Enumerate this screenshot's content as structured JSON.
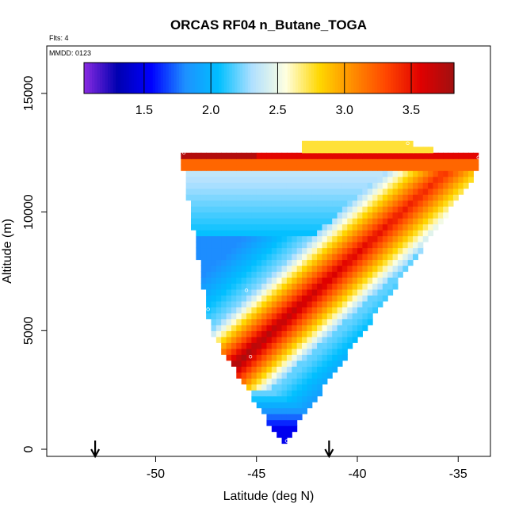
{
  "chart_data": {
    "type": "heatmap",
    "title": "ORCAS RF04 n_Butane_TOGA",
    "subtitle_flights": "Flts: 4",
    "subtitle_date": "MMDD: 0123",
    "xlabel": "Latitude (deg N)",
    "ylabel": "Altitude (m)",
    "xlim": [
      -55.4,
      -33.4
    ],
    "ylim": [
      -300,
      17000
    ],
    "x_ticks": [
      -50,
      -45,
      -40,
      -35
    ],
    "x_tick_labels": [
      "-50",
      "-45",
      "-40",
      "-35"
    ],
    "y_ticks": [
      0,
      5000,
      10000,
      15000
    ],
    "y_tick_labels": [
      "0",
      "5000",
      "10000",
      "15000"
    ],
    "colorbar": {
      "range": [
        1.05,
        3.82
      ],
      "ticks": [
        1.5,
        2.0,
        2.5,
        3.0,
        3.5
      ],
      "tick_labels": [
        "1.5",
        "2.0",
        "2.5",
        "3.0",
        "3.5"
      ],
      "colors": [
        "#8a2be2",
        "#0000b0",
        "#0000ff",
        "#1e90ff",
        "#00bfff",
        "#b0e0ff",
        "#ffffe0",
        "#ffd700",
        "#ff8c00",
        "#ff4500",
        "#e00000",
        "#a01010"
      ]
    },
    "field_region": {
      "description_points": [
        {
          "lat": -48.6,
          "alt": 12600
        },
        {
          "lat": -37.5,
          "alt": 12900
        },
        {
          "lat": -34.0,
          "alt": 12300
        },
        {
          "lat": -43.7,
          "alt": 300
        },
        {
          "lat": -46.3,
          "alt": 1800
        },
        {
          "lat": -47.4,
          "alt": 5000
        }
      ],
      "outflow_layer_alt": 12200,
      "plume_axis": [
        {
          "lat": -45.5,
          "alt": 4000,
          "value": 3.75
        },
        {
          "lat": -43.0,
          "alt": 6200,
          "value": 3.6
        },
        {
          "lat": -40.0,
          "alt": 8600,
          "value": 3.45
        },
        {
          "lat": -36.5,
          "alt": 11200,
          "value": 3.35
        }
      ],
      "min_value_near": {
        "lat": -43.7,
        "alt": 300,
        "value": 1.1
      },
      "max_value_near": {
        "lat": -48.5,
        "alt": 12400,
        "value": 3.8
      }
    },
    "flight_markers": [
      {
        "lat": -48.6,
        "alt": 12500
      },
      {
        "lat": -37.5,
        "alt": 12900
      },
      {
        "lat": -34.0,
        "alt": 12300
      },
      {
        "lat": -45.5,
        "alt": 6700
      },
      {
        "lat": -45.3,
        "alt": 3900
      },
      {
        "lat": -47.0,
        "alt": 3200
      },
      {
        "lat": -43.5,
        "alt": 350
      },
      {
        "lat": -47.4,
        "alt": 5900
      }
    ],
    "arrows": [
      {
        "lat": -53.0
      },
      {
        "lat": -41.4
      }
    ]
  }
}
